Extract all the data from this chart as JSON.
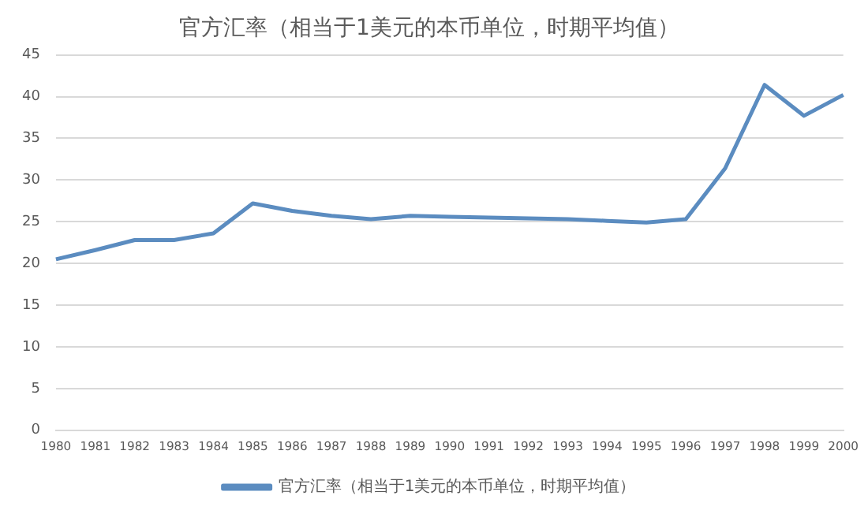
{
  "chart_data": {
    "type": "line",
    "title": "官方汇率（相当于1美元的本币单位，时期平均值）",
    "categories": [
      "1980",
      "1981",
      "1982",
      "1983",
      "1984",
      "1985",
      "1986",
      "1987",
      "1988",
      "1989",
      "1990",
      "1991",
      "1992",
      "1993",
      "1994",
      "1995",
      "1996",
      "1997",
      "1998",
      "1999",
      "2000"
    ],
    "series": [
      {
        "name": "官方汇率（相当于1美元的本币单位，时期平均值）",
        "color": "#5b8cc0",
        "values": [
          20.5,
          21.6,
          22.8,
          22.8,
          23.6,
          27.2,
          26.3,
          25.7,
          25.3,
          25.7,
          25.6,
          25.5,
          25.4,
          25.3,
          25.1,
          24.9,
          25.3,
          31.4,
          41.4,
          37.7,
          40.2
        ]
      }
    ],
    "ylim": [
      0,
      45
    ],
    "yticks": [
      0,
      5,
      10,
      15,
      20,
      25,
      30,
      35,
      40,
      45
    ],
    "grid": "y",
    "legend": "bottom",
    "marker": "none",
    "line_style": "solid"
  }
}
